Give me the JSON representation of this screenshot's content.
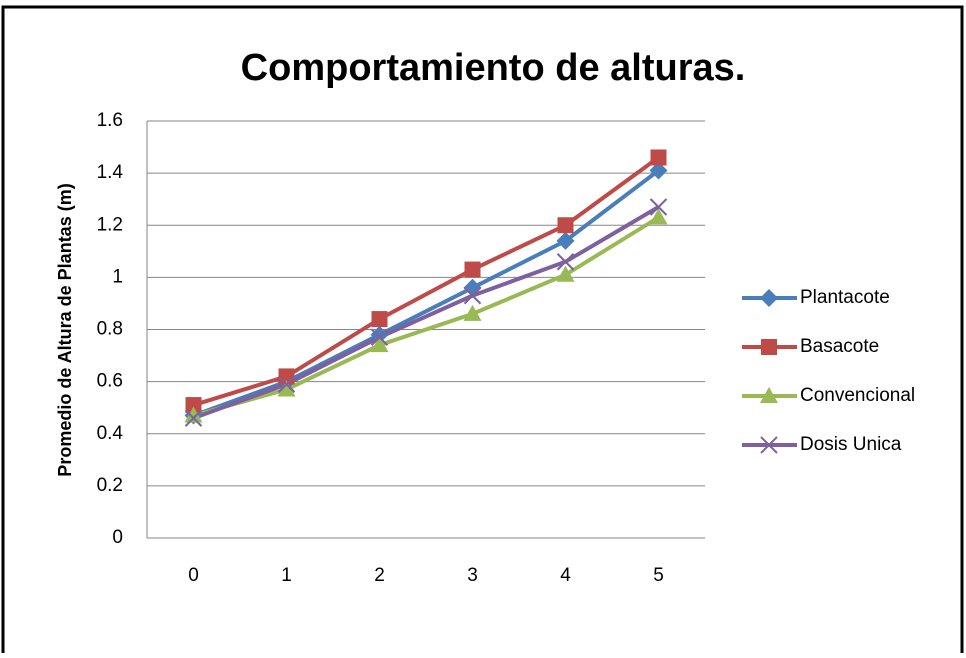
{
  "chart_data": {
    "type": "line",
    "title": "Comportamiento de alturas.",
    "y_label": "Promedio de Altura de Plantas (m)",
    "categories": [
      "0",
      "1",
      "2",
      "3",
      "4",
      "5"
    ],
    "series": [
      {
        "name": "Plantacote",
        "color": "#4a7ebb",
        "marker": "diamond",
        "values": [
          0.47,
          0.6,
          0.78,
          0.96,
          1.14,
          1.41
        ]
      },
      {
        "name": "Basacote",
        "color": "#be4b48",
        "marker": "square",
        "values": [
          0.51,
          0.62,
          0.84,
          1.03,
          1.2,
          1.46
        ]
      },
      {
        "name": "Convencional",
        "color": "#98b954",
        "marker": "triangle",
        "values": [
          0.47,
          0.57,
          0.74,
          0.86,
          1.01,
          1.23
        ]
      },
      {
        "name": "Dosis Unica",
        "color": "#7d60a0",
        "marker": "x",
        "values": [
          0.46,
          0.59,
          0.77,
          0.93,
          1.06,
          1.27
        ]
      }
    ],
    "ylim": [
      0,
      1.6
    ],
    "yticks": [
      0,
      0.2,
      0.4,
      0.6,
      0.8,
      1,
      1.2,
      1.4,
      1.6
    ],
    "grid": true,
    "legend": "right"
  }
}
